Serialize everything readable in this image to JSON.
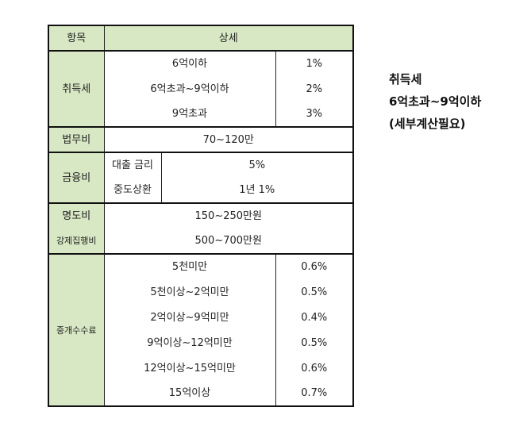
{
  "header": {
    "label": "항목",
    "detail": "상세"
  },
  "acquisition_tax": {
    "label": "취득세",
    "rows": [
      {
        "desc": "6억이하",
        "rate": "1%"
      },
      {
        "desc": "6억초과~9억이하",
        "rate": "2%"
      },
      {
        "desc": "9억초과",
        "rate": "3%"
      }
    ]
  },
  "legal_fee": {
    "label": "법무비",
    "value": "70~120만"
  },
  "finance_cost": {
    "label": "금융비",
    "rows": [
      {
        "name": "대출 금리",
        "value": "5%"
      },
      {
        "name": "중도상환",
        "value": "1년 1%"
      }
    ]
  },
  "eviction_fee": {
    "label": "명도비",
    "value": "150~250만원"
  },
  "enforcement_fee": {
    "label": "강제집행비",
    "value": "500~700만원"
  },
  "brokerage_fee": {
    "label": "중개수수료",
    "rows": [
      {
        "desc": "5천미만",
        "rate": "0.6%"
      },
      {
        "desc": "5천이상~2억미만",
        "rate": "0.5%"
      },
      {
        "desc": "2억이상~9억미만",
        "rate": "0.4%"
      },
      {
        "desc": "9억이상~12억미만",
        "rate": "0.5%"
      },
      {
        "desc": "12억이상~15억미만",
        "rate": "0.6%"
      },
      {
        "desc": "15억이상",
        "rate": "0.7%"
      }
    ]
  },
  "side_note": {
    "line1": "취득세",
    "line2": "6억초과~9억이하",
    "line3": "(세부계산필요)"
  }
}
